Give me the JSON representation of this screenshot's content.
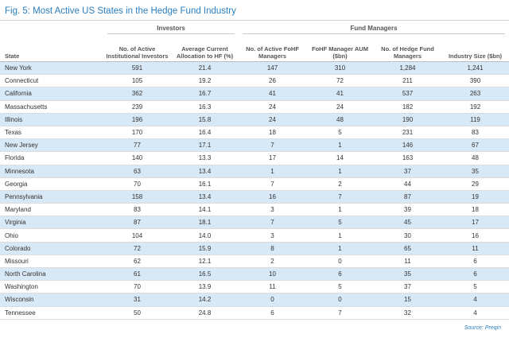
{
  "figure": {
    "title": "Fig. 5: Most Active US States in the Hedge Fund Industry",
    "source": "Source: Preqin"
  },
  "groups": {
    "investors": "Investors",
    "fund_managers": "Fund Managers"
  },
  "columns": [
    "State",
    "No. of Active Institutional Investors",
    "Average Current Allocation to HF (%)",
    "No. of Active FoHF Managers",
    "FoHF Manager AUM ($bn)",
    "No. of Hedge Fund Managers",
    "Industry Size ($bn)"
  ],
  "rows": [
    [
      "New York",
      "591",
      "21.4",
      "147",
      "310",
      "1,284",
      "1,241"
    ],
    [
      "Connecticut",
      "105",
      "19.2",
      "26",
      "72",
      "211",
      "390"
    ],
    [
      "California",
      "362",
      "16.7",
      "41",
      "41",
      "537",
      "263"
    ],
    [
      "Massachusetts",
      "239",
      "16.3",
      "24",
      "24",
      "182",
      "192"
    ],
    [
      "Illinois",
      "196",
      "15.8",
      "24",
      "48",
      "190",
      "119"
    ],
    [
      "Texas",
      "170",
      "16.4",
      "18",
      "5",
      "231",
      "83"
    ],
    [
      "New Jersey",
      "77",
      "17.1",
      "7",
      "1",
      "146",
      "67"
    ],
    [
      "Florida",
      "140",
      "13.3",
      "17",
      "14",
      "163",
      "48"
    ],
    [
      "Minnesota",
      "63",
      "13.4",
      "1",
      "1",
      "37",
      "35"
    ],
    [
      "Georgia",
      "70",
      "16.1",
      "7",
      "2",
      "44",
      "29"
    ],
    [
      "Pennsylvania",
      "158",
      "13.4",
      "16",
      "7",
      "87",
      "19"
    ],
    [
      "Maryland",
      "83",
      "14.1",
      "3",
      "1",
      "39",
      "18"
    ],
    [
      "Virginia",
      "87",
      "18.1",
      "7",
      "5",
      "45",
      "17"
    ],
    [
      "Ohio",
      "104",
      "14.0",
      "3",
      "1",
      "30",
      "16"
    ],
    [
      "Colorado",
      "72",
      "15.9",
      "8",
      "1",
      "65",
      "11"
    ],
    [
      "Missouri",
      "62",
      "12.1",
      "2",
      "0",
      "11",
      "6"
    ],
    [
      "North Carolina",
      "61",
      "16.5",
      "10",
      "6",
      "35",
      "6"
    ],
    [
      "Washington",
      "70",
      "13.9",
      "11",
      "5",
      "37",
      "5"
    ],
    [
      "Wisconsin",
      "31",
      "14.2",
      "0",
      "0",
      "15",
      "4"
    ],
    [
      "Tennessee",
      "50",
      "24.8",
      "6",
      "7",
      "32",
      "4"
    ]
  ],
  "colors": {
    "title": "#2a7fc0",
    "row_highlight": "#d7e8f6"
  }
}
